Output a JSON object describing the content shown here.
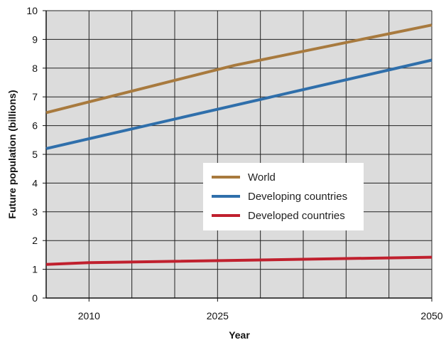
{
  "chart_data": {
    "type": "line",
    "title": "",
    "xlabel": "Year",
    "ylabel": "Future population (billions)",
    "xlim": [
      2005,
      2050
    ],
    "ylim": [
      0,
      10
    ],
    "x_ticks": [
      2010,
      2025,
      2050
    ],
    "y_ticks": [
      0,
      1,
      2,
      3,
      4,
      5,
      6,
      7,
      8,
      9,
      10
    ],
    "grid": true,
    "background": "#dcdcdc",
    "legend_position": "center-right",
    "series": [
      {
        "name": "World",
        "color": "#a87a3e",
        "points": [
          [
            2005,
            6.45
          ],
          [
            2025,
            7.95
          ],
          [
            2027,
            8.1
          ],
          [
            2050,
            9.5
          ]
        ]
      },
      {
        "name": "Developing countries",
        "color": "#2f6fab",
        "points": [
          [
            2005,
            5.2
          ],
          [
            2050,
            8.28
          ]
        ]
      },
      {
        "name": "Developed countries",
        "color": "#c0202e",
        "points": [
          [
            2005,
            1.17
          ],
          [
            2010,
            1.23
          ],
          [
            2050,
            1.42
          ]
        ]
      }
    ]
  }
}
